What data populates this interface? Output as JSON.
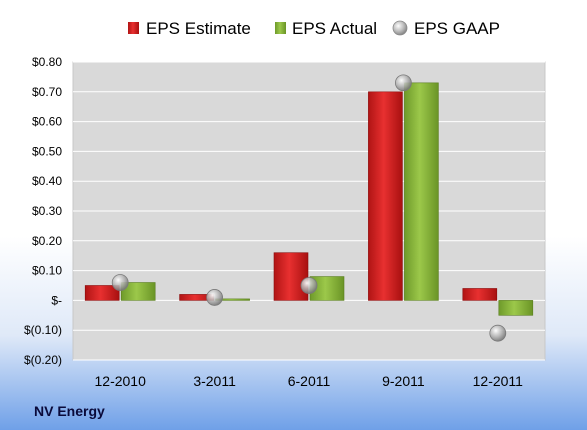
{
  "company_label": "NV Energy",
  "colors": {
    "estimate": "#d42020",
    "actual": "#8cb43c",
    "gaap": "#a8a8a8",
    "plot_bg": "#d9d9d9"
  },
  "chart_data": {
    "type": "bar",
    "title": "",
    "xlabel": "",
    "ylabel": "",
    "categories": [
      "12-2010",
      "3-2011",
      "6-2011",
      "9-2011",
      "12-2011"
    ],
    "series": [
      {
        "name": "EPS Estimate",
        "kind": "bar",
        "values": [
          0.05,
          0.02,
          0.16,
          0.7,
          0.04
        ]
      },
      {
        "name": "EPS Actual",
        "kind": "bar",
        "values": [
          0.06,
          0.005,
          0.08,
          0.73,
          -0.05
        ]
      },
      {
        "name": "EPS GAAP",
        "kind": "marker",
        "values": [
          0.06,
          0.01,
          0.05,
          0.73,
          -0.11
        ]
      }
    ],
    "ylim": [
      -0.2,
      0.8
    ],
    "yticks": [
      0.8,
      0.7,
      0.6,
      0.5,
      0.4,
      0.3,
      0.2,
      0.1,
      0,
      -0.1,
      -0.2
    ],
    "ytick_labels": [
      "$0.80",
      "$0.70",
      "$0.60",
      "$0.50",
      "$0.40",
      "$0.30",
      "$0.20",
      "$0.10",
      "$-",
      "$(0.10)",
      "$(0.20)"
    ],
    "legend_position": "top",
    "grid": true
  }
}
